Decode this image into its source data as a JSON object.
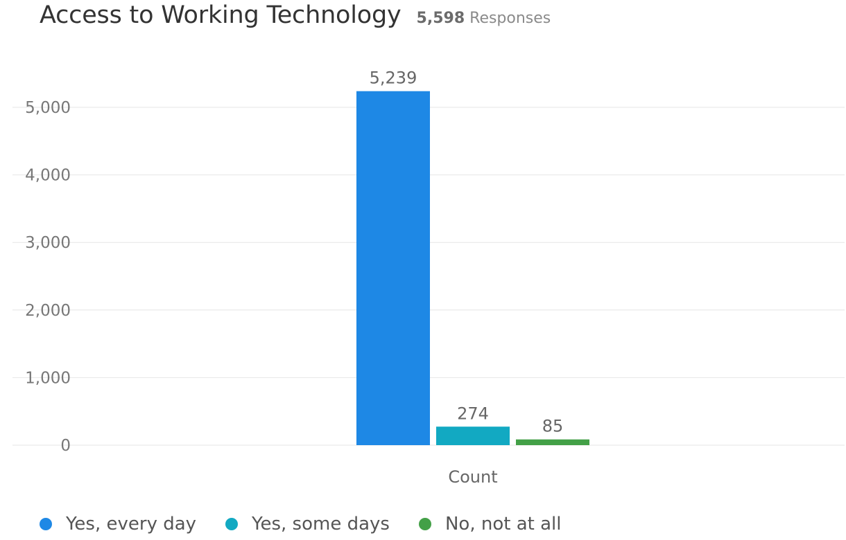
{
  "header": {
    "title": "Access to Working Technology",
    "response_count": "5,598",
    "response_label": "Responses"
  },
  "chart_data": {
    "type": "bar",
    "title": "Access to Working Technology",
    "subtitle": "5,598 Responses",
    "categories": [
      "Count"
    ],
    "xlabel": "",
    "ylabel": "",
    "ylim": [
      0,
      5000
    ],
    "yticks": [
      "0",
      "1,000",
      "2,000",
      "3,000",
      "4,000",
      "5,000"
    ],
    "grid": true,
    "legend_position": "bottom-left",
    "series": [
      {
        "name": "Yes, every day",
        "values": [
          5239
        ],
        "label": "5,239",
        "color": "#1e88e5"
      },
      {
        "name": "Yes, some days",
        "values": [
          274
        ],
        "label": "274",
        "color": "#12a9c2"
      },
      {
        "name": "No, not at all",
        "values": [
          85
        ],
        "label": "85",
        "color": "#43a047"
      }
    ]
  }
}
